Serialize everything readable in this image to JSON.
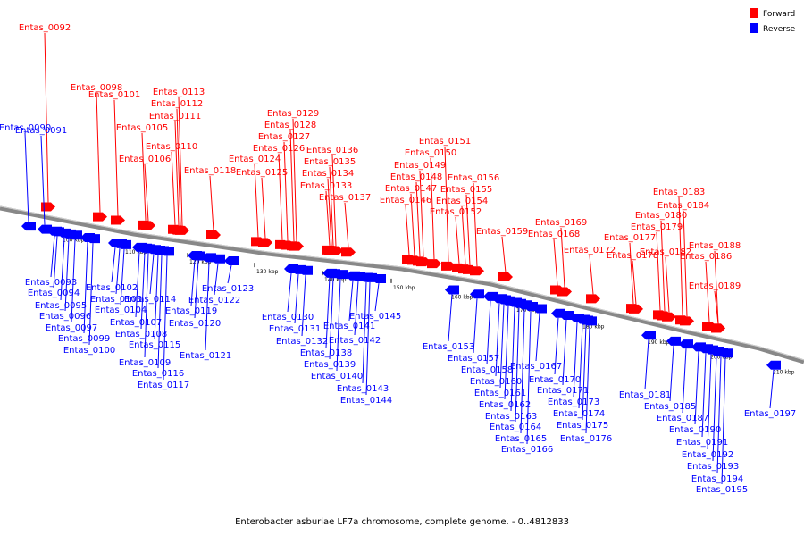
{
  "colors": {
    "forward": "#ff0000",
    "reverse": "#0000ff",
    "backbone": "#888888"
  },
  "legend": {
    "forward_label": "Forward",
    "reverse_label": "Reverse"
  },
  "caption": "Enterobacter asburiae LF7a chromosome, complete genome. - 0..4812833",
  "ticks": [
    "100 kbp",
    "110 kbp",
    "120 kbp",
    "130 kbp",
    "140 kbp",
    "150 kbp",
    "160 kbp",
    "170 kbp",
    "180 kbp",
    "190 kbp",
    "200 kbp",
    "210 kbp"
  ],
  "forward_genes": [
    "Entas_0092",
    "Entas_0098",
    "Entas_0101",
    "Entas_0105",
    "Entas_0106",
    "Entas_0110",
    "Entas_0111",
    "Entas_0112",
    "Entas_0113",
    "Entas_0118",
    "Entas_0124",
    "Entas_0125",
    "Entas_0126",
    "Entas_0127",
    "Entas_0128",
    "Entas_0129",
    "Entas_0133",
    "Entas_0134",
    "Entas_0135",
    "Entas_0136",
    "Entas_0137",
    "Entas_0146",
    "Entas_0147",
    "Entas_0148",
    "Entas_0149",
    "Entas_0150",
    "Entas_0151",
    "Entas_0152",
    "Entas_0154",
    "Entas_0155",
    "Entas_0156",
    "Entas_0159",
    "Entas_0168",
    "Entas_0169",
    "Entas_0172",
    "Entas_0177",
    "Entas_0178",
    "Entas_0179",
    "Entas_0180",
    "Entas_0182",
    "Entas_0183",
    "Entas_0184",
    "Entas_0186",
    "Entas_0188",
    "Entas_0189"
  ],
  "reverse_genes": [
    "Entas_0090",
    "Entas_0091",
    "Entas_0093",
    "Entas_0094",
    "Entas_0095",
    "Entas_0096",
    "Entas_0097",
    "Entas_0099",
    "Entas_0100",
    "Entas_0102",
    "Entas_0103",
    "Entas_0104",
    "Entas_0107",
    "Entas_0108",
    "Entas_0109",
    "Entas_0114",
    "Entas_0115",
    "Entas_0116",
    "Entas_0117",
    "Entas_0119",
    "Entas_0120",
    "Entas_0121",
    "Entas_0122",
    "Entas_0123",
    "Entas_0130",
    "Entas_0131",
    "Entas_0132",
    "Entas_0138",
    "Entas_0139",
    "Entas_0140",
    "Entas_0141",
    "Entas_0142",
    "Entas_0143",
    "Entas_0144",
    "Entas_0145",
    "Entas_0153",
    "Entas_0157",
    "Entas_0158",
    "Entas_0160",
    "Entas_0161",
    "Entas_0162",
    "Entas_0163",
    "Entas_0164",
    "Entas_0165",
    "Entas_0166",
    "Entas_0167",
    "Entas_0170",
    "Entas_0171",
    "Entas_0173",
    "Entas_0174",
    "Entas_0175",
    "Entas_0176",
    "Entas_0181",
    "Entas_0185",
    "Entas_0187",
    "Entas_0190",
    "Entas_0191",
    "Entas_0192",
    "Entas_0193",
    "Entas_0194",
    "Entas_0195",
    "Entas_0197"
  ]
}
